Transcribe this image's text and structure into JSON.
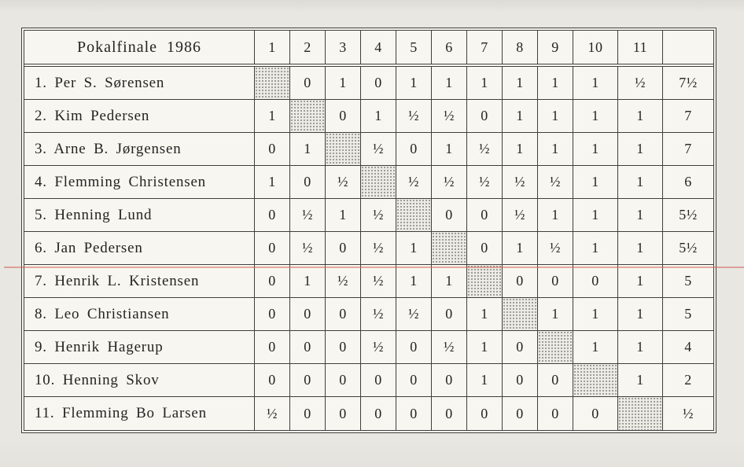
{
  "table": {
    "title": "Pokalfinale 1986",
    "round_headers": [
      "1",
      "2",
      "3",
      "4",
      "5",
      "6",
      "7",
      "8",
      "9",
      "10",
      "11"
    ],
    "total_header": "",
    "players": [
      {
        "name": "1. Per S. Sørensen",
        "results": [
          null,
          "0",
          "1",
          "0",
          "1",
          "1",
          "1",
          "1",
          "1",
          "1",
          "½"
        ],
        "total": "7½"
      },
      {
        "name": "2. Kim Pedersen",
        "results": [
          "1",
          null,
          "0",
          "1",
          "½",
          "½",
          "0",
          "1",
          "1",
          "1",
          "1"
        ],
        "total": "7"
      },
      {
        "name": "3. Arne B. Jørgensen",
        "results": [
          "0",
          "1",
          null,
          "½",
          "0",
          "1",
          "½",
          "1",
          "1",
          "1",
          "1"
        ],
        "total": "7"
      },
      {
        "name": "4. Flemming Christensen",
        "results": [
          "1",
          "0",
          "½",
          null,
          "½",
          "½",
          "½",
          "½",
          "½",
          "1",
          "1"
        ],
        "total": "6"
      },
      {
        "name": "5. Henning Lund",
        "results": [
          "0",
          "½",
          "1",
          "½",
          null,
          "0",
          "0",
          "½",
          "1",
          "1",
          "1"
        ],
        "total": "5½"
      },
      {
        "name": "6. Jan Pedersen",
        "results": [
          "0",
          "½",
          "0",
          "½",
          "1",
          null,
          "0",
          "1",
          "½",
          "1",
          "1"
        ],
        "total": "5½"
      },
      {
        "name": "7. Henrik L. Kristensen",
        "results": [
          "0",
          "1",
          "½",
          "½",
          "1",
          "1",
          null,
          "0",
          "0",
          "0",
          "1"
        ],
        "total": "5"
      },
      {
        "name": "8. Leo Christiansen",
        "results": [
          "0",
          "0",
          "0",
          "½",
          "½",
          "0",
          "1",
          null,
          "1",
          "1",
          "1"
        ],
        "total": "5"
      },
      {
        "name": "9. Henrik Hagerup",
        "results": [
          "0",
          "0",
          "0",
          "½",
          "0",
          "½",
          "1",
          "0",
          null,
          "1",
          "1"
        ],
        "total": "4"
      },
      {
        "name": "10. Henning Skov",
        "results": [
          "0",
          "0",
          "0",
          "0",
          "0",
          "0",
          "1",
          "0",
          "0",
          null,
          "1"
        ],
        "total": "2"
      },
      {
        "name": "11. Flemming Bo Larsen",
        "results": [
          "½",
          "0",
          "0",
          "0",
          "0",
          "0",
          "0",
          "0",
          "0",
          "0",
          null
        ],
        "total": "½"
      }
    ]
  },
  "colors": {
    "paper": "#e9e7e2",
    "cell_background": "#f7f6f1",
    "grid_line": "#413f3b",
    "text": "#262420",
    "red_pen_line": "#cf5a4e",
    "blue_watermark": "#7aa6cd"
  }
}
